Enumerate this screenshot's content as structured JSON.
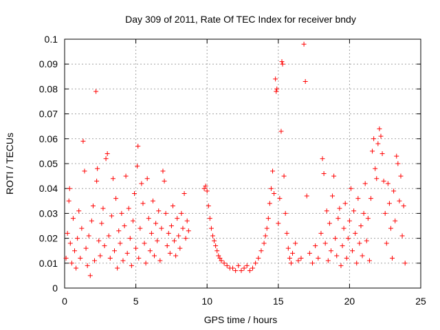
{
  "chart_data": {
    "type": "scatter",
    "title": "Day 309 of 2011, Rate Of TEC Index for receiver bndy",
    "xlabel": "GPS time / hours",
    "ylabel": "ROTI / TECUs",
    "xlim": [
      0,
      25
    ],
    "ylim": [
      0,
      0.1
    ],
    "x_ticks": [
      "0",
      "5",
      "10",
      "15",
      "20",
      "25"
    ],
    "y_ticks": [
      "0",
      "0.01",
      "0.02",
      "0.03",
      "0.04",
      "0.05",
      "0.06",
      "0.07",
      "0.08",
      "0.09",
      "0.1"
    ],
    "x_tick_values": [
      0,
      5,
      10,
      15,
      20,
      25
    ],
    "y_tick_values": [
      0,
      0.01,
      0.02,
      0.03,
      0.04,
      0.05,
      0.06,
      0.07,
      0.08,
      0.09,
      0.1
    ],
    "grid": true,
    "marker": "+",
    "marker_color": "#ff0000",
    "series": [
      {
        "name": "ROTI",
        "points": [
          [
            0.1,
            0.012
          ],
          [
            0.2,
            0.022
          ],
          [
            0.3,
            0.035
          ],
          [
            0.35,
            0.04
          ],
          [
            0.4,
            0.018
          ],
          [
            0.5,
            0.01
          ],
          [
            0.6,
            0.028
          ],
          [
            0.7,
            0.015
          ],
          [
            0.8,
            0.008
          ],
          [
            0.9,
            0.02
          ],
          [
            1.0,
            0.031
          ],
          [
            1.1,
            0.012
          ],
          [
            1.2,
            0.024
          ],
          [
            1.3,
            0.059
          ],
          [
            1.4,
            0.047
          ],
          [
            1.5,
            0.016
          ],
          [
            1.6,
            0.009
          ],
          [
            1.7,
            0.021
          ],
          [
            1.8,
            0.005
          ],
          [
            1.9,
            0.027
          ],
          [
            2.0,
            0.033
          ],
          [
            2.1,
            0.011
          ],
          [
            2.2,
            0.079
          ],
          [
            2.25,
            0.043
          ],
          [
            2.3,
            0.048
          ],
          [
            2.4,
            0.019
          ],
          [
            2.5,
            0.013
          ],
          [
            2.6,
            0.026
          ],
          [
            2.7,
            0.032
          ],
          [
            2.8,
            0.017
          ],
          [
            2.9,
            0.052
          ],
          [
            3.0,
            0.054
          ],
          [
            3.1,
            0.021
          ],
          [
            3.2,
            0.012
          ],
          [
            3.3,
            0.029
          ],
          [
            3.4,
            0.044
          ],
          [
            3.5,
            0.015
          ],
          [
            3.6,
            0.036
          ],
          [
            3.7,
            0.008
          ],
          [
            3.8,
            0.023
          ],
          [
            3.9,
            0.018
          ],
          [
            4.0,
            0.03
          ],
          [
            4.1,
            0.011
          ],
          [
            4.2,
            0.025
          ],
          [
            4.3,
            0.045
          ],
          [
            4.4,
            0.014
          ],
          [
            4.5,
            0.032
          ],
          [
            4.6,
            0.02
          ],
          [
            4.7,
            0.009
          ],
          [
            4.8,
            0.027
          ],
          [
            4.9,
            0.038
          ],
          [
            5.0,
            0.016
          ],
          [
            5.1,
            0.049
          ],
          [
            5.15,
            0.057
          ],
          [
            5.2,
            0.012
          ],
          [
            5.3,
            0.024
          ],
          [
            5.4,
            0.042
          ],
          [
            5.5,
            0.034
          ],
          [
            5.6,
            0.018
          ],
          [
            5.7,
            0.01
          ],
          [
            5.8,
            0.044
          ],
          [
            5.9,
            0.028
          ],
          [
            6.0,
            0.015
          ],
          [
            6.1,
            0.022
          ],
          [
            6.2,
            0.035
          ],
          [
            6.3,
            0.013
          ],
          [
            6.4,
            0.026
          ],
          [
            6.5,
            0.019
          ],
          [
            6.6,
            0.031
          ],
          [
            6.7,
            0.011
          ],
          [
            6.8,
            0.024
          ],
          [
            6.9,
            0.047
          ],
          [
            7.0,
            0.043
          ],
          [
            7.1,
            0.03
          ],
          [
            7.2,
            0.017
          ],
          [
            7.3,
            0.022
          ],
          [
            7.4,
            0.014
          ],
          [
            7.5,
            0.025
          ],
          [
            7.6,
            0.033
          ],
          [
            7.7,
            0.019
          ],
          [
            7.8,
            0.013
          ],
          [
            7.9,
            0.028
          ],
          [
            8.0,
            0.021
          ],
          [
            8.1,
            0.016
          ],
          [
            8.2,
            0.03
          ],
          [
            8.3,
            0.024
          ],
          [
            8.4,
            0.038
          ],
          [
            8.5,
            0.02
          ],
          [
            8.6,
            0.027
          ],
          [
            8.7,
            0.023
          ],
          [
            9.8,
            0.04
          ],
          [
            9.9,
            0.041
          ],
          [
            10.0,
            0.039
          ],
          [
            10.1,
            0.033
          ],
          [
            10.2,
            0.028
          ],
          [
            10.3,
            0.024
          ],
          [
            10.4,
            0.021
          ],
          [
            10.5,
            0.019
          ],
          [
            10.6,
            0.017
          ],
          [
            10.7,
            0.015
          ],
          [
            10.8,
            0.013
          ],
          [
            10.9,
            0.012
          ],
          [
            11.0,
            0.011
          ],
          [
            11.2,
            0.01
          ],
          [
            11.4,
            0.009
          ],
          [
            11.6,
            0.008
          ],
          [
            11.8,
            0.008
          ],
          [
            12.0,
            0.007
          ],
          [
            12.2,
            0.009
          ],
          [
            12.4,
            0.007
          ],
          [
            12.6,
            0.008
          ],
          [
            12.8,
            0.009
          ],
          [
            13.0,
            0.007
          ],
          [
            13.2,
            0.008
          ],
          [
            13.4,
            0.01
          ],
          [
            13.6,
            0.012
          ],
          [
            13.8,
            0.015
          ],
          [
            14.0,
            0.018
          ],
          [
            14.1,
            0.021
          ],
          [
            14.2,
            0.024
          ],
          [
            14.3,
            0.028
          ],
          [
            14.4,
            0.034
          ],
          [
            14.5,
            0.04
          ],
          [
            14.6,
            0.047
          ],
          [
            14.7,
            0.038
          ],
          [
            14.8,
            0.084
          ],
          [
            14.85,
            0.079
          ],
          [
            14.9,
            0.08
          ],
          [
            15.0,
            0.026
          ],
          [
            15.1,
            0.036
          ],
          [
            15.2,
            0.063
          ],
          [
            15.25,
            0.091
          ],
          [
            15.3,
            0.09
          ],
          [
            15.4,
            0.045
          ],
          [
            15.5,
            0.03
          ],
          [
            15.6,
            0.022
          ],
          [
            15.7,
            0.016
          ],
          [
            15.8,
            0.012
          ],
          [
            15.9,
            0.01
          ],
          [
            16.0,
            0.014
          ],
          [
            16.2,
            0.018
          ],
          [
            16.4,
            0.011
          ],
          [
            16.6,
            0.012
          ],
          [
            16.8,
            0.098
          ],
          [
            16.9,
            0.083
          ],
          [
            17.0,
            0.037
          ],
          [
            17.2,
            0.014
          ],
          [
            17.4,
            0.01
          ],
          [
            17.6,
            0.017
          ],
          [
            17.8,
            0.012
          ],
          [
            18.0,
            0.022
          ],
          [
            18.1,
            0.052
          ],
          [
            18.2,
            0.046
          ],
          [
            18.3,
            0.018
          ],
          [
            18.4,
            0.031
          ],
          [
            18.5,
            0.011
          ],
          [
            18.6,
            0.026
          ],
          [
            18.7,
            0.015
          ],
          [
            18.8,
            0.037
          ],
          [
            18.9,
            0.045
          ],
          [
            19.0,
            0.02
          ],
          [
            19.1,
            0.013
          ],
          [
            19.2,
            0.028
          ],
          [
            19.3,
            0.032
          ],
          [
            19.4,
            0.009
          ],
          [
            19.5,
            0.017
          ],
          [
            19.6,
            0.024
          ],
          [
            19.7,
            0.034
          ],
          [
            19.8,
            0.012
          ],
          [
            19.9,
            0.02
          ],
          [
            20.0,
            0.027
          ],
          [
            20.1,
            0.04
          ],
          [
            20.2,
            0.015
          ],
          [
            20.3,
            0.031
          ],
          [
            20.4,
            0.022
          ],
          [
            20.5,
            0.01
          ],
          [
            20.6,
            0.036
          ],
          [
            20.7,
            0.018
          ],
          [
            20.8,
            0.025
          ],
          [
            20.9,
            0.013
          ],
          [
            21.0,
            0.03
          ],
          [
            21.1,
            0.042
          ],
          [
            21.2,
            0.019
          ],
          [
            21.3,
            0.028
          ],
          [
            21.4,
            0.011
          ],
          [
            21.5,
            0.036
          ],
          [
            21.6,
            0.055
          ],
          [
            21.7,
            0.06
          ],
          [
            21.8,
            0.048
          ],
          [
            21.9,
            0.044
          ],
          [
            22.0,
            0.058
          ],
          [
            22.1,
            0.064
          ],
          [
            22.2,
            0.061
          ],
          [
            22.3,
            0.054
          ],
          [
            22.4,
            0.043
          ],
          [
            22.5,
            0.03
          ],
          [
            22.6,
            0.018
          ],
          [
            22.7,
            0.042
          ],
          [
            22.8,
            0.034
          ],
          [
            22.9,
            0.024
          ],
          [
            23.0,
            0.012
          ],
          [
            23.1,
            0.039
          ],
          [
            23.2,
            0.027
          ],
          [
            23.3,
            0.053
          ],
          [
            23.4,
            0.05
          ],
          [
            23.5,
            0.035
          ],
          [
            23.6,
            0.045
          ],
          [
            23.7,
            0.021
          ],
          [
            23.8,
            0.033
          ],
          [
            23.9,
            0.01
          ]
        ]
      }
    ]
  }
}
